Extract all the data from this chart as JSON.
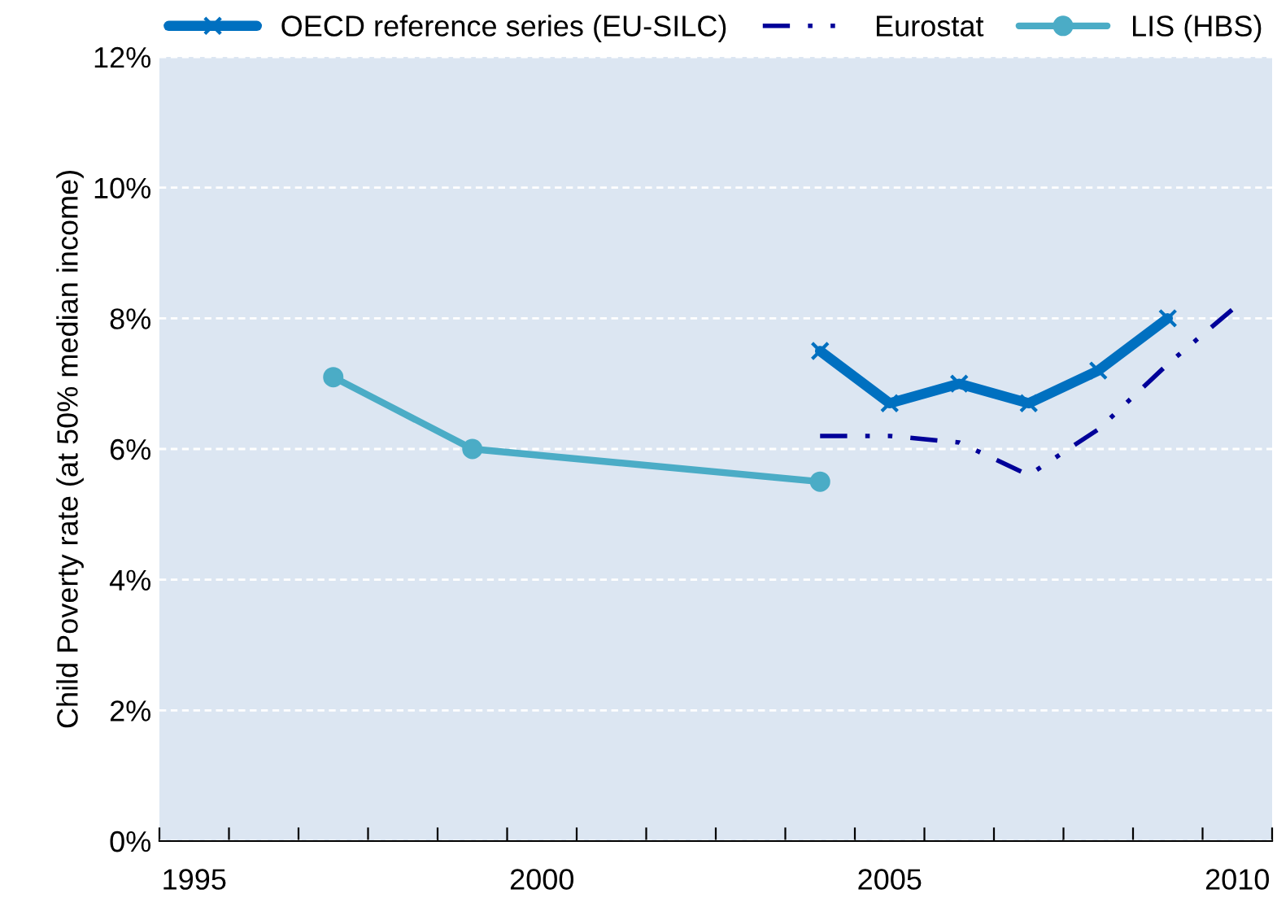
{
  "chart_data": {
    "type": "line",
    "ylabel": "Child Poverty rate (at 50% median income)",
    "categories": [
      "1995",
      null,
      null,
      null,
      null,
      "2000",
      null,
      null,
      null,
      null,
      "2005",
      null,
      null,
      null,
      null,
      "2010"
    ],
    "series": [
      {
        "name": "OECD reference series (EU-SILC)",
        "color": "#0070c0",
        "marker": "cross",
        "line_style": "solid",
        "values": [
          null,
          null,
          null,
          null,
          null,
          null,
          null,
          null,
          null,
          7.5,
          6.7,
          7.0,
          6.7,
          7.2,
          8.0,
          null
        ]
      },
      {
        "name": "Eurostat",
        "color": "#000099",
        "marker": "none",
        "line_style": "dashdot",
        "values": [
          null,
          null,
          null,
          null,
          null,
          null,
          null,
          null,
          null,
          6.2,
          6.2,
          6.1,
          5.6,
          6.3,
          7.3,
          8.2
        ]
      },
      {
        "name": "LIS (HBS)",
        "color": "#4bacc6",
        "marker": "circle",
        "line_style": "solid",
        "values": [
          null,
          null,
          7.1,
          null,
          6.0,
          null,
          null,
          null,
          null,
          5.5,
          null,
          null,
          null,
          null,
          null,
          null
        ]
      }
    ],
    "ylim": [
      0,
      12
    ],
    "yticks": [
      {
        "value": 0,
        "label": "0%"
      },
      {
        "value": 2,
        "label": "2%"
      },
      {
        "value": 4,
        "label": "4%"
      },
      {
        "value": 6,
        "label": "6%"
      },
      {
        "value": 8,
        "label": "8%"
      },
      {
        "value": 10,
        "label": "10%"
      },
      {
        "value": 12,
        "label": "12%"
      }
    ],
    "grid": "y",
    "legend": "top"
  }
}
